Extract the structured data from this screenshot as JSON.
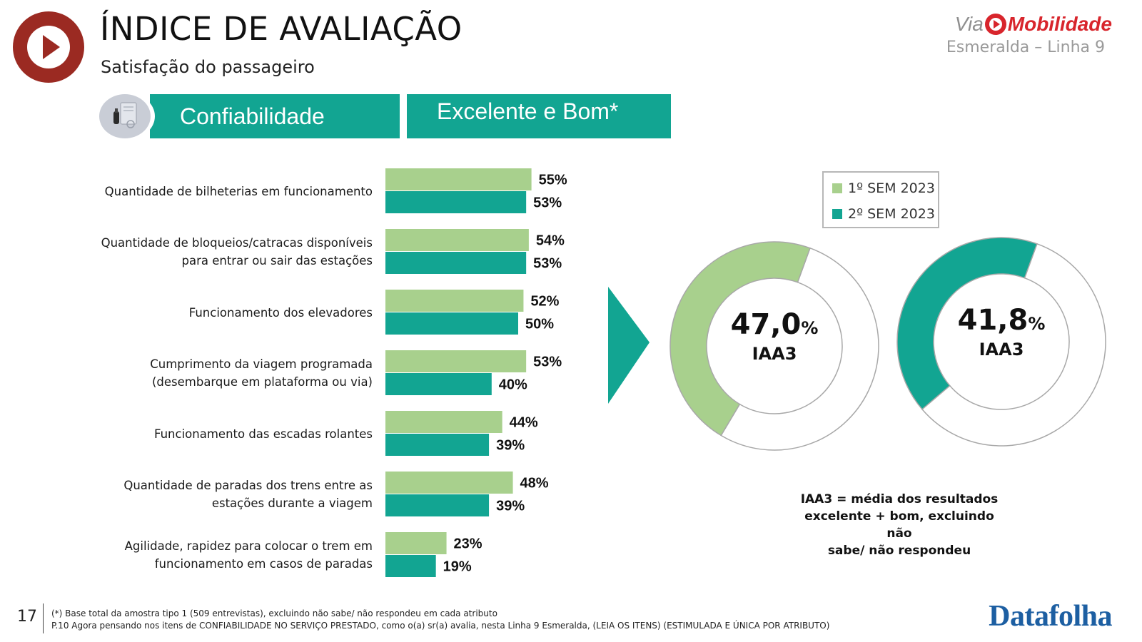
{
  "header": {
    "title": "ÍNDICE DE AVALIAÇÃO",
    "subtitle": "Satisfação do passageiro",
    "brand_via": "Via",
    "brand_mobilidade": "Mobilidade",
    "brand_line": "Esmeralda – Linha 9",
    "logo_icon": "play-icon",
    "brand_color": "#9b2a22"
  },
  "banners": {
    "category": "Confiabilidade",
    "metric": "Excelente e Bom*",
    "category_icon": "ticket-reader-icon",
    "color": "#12a592"
  },
  "chart_data": [
    {
      "type": "bar",
      "orientation": "horizontal",
      "categories": [
        "Quantidade de bilheterias em funcionamento",
        "Quantidade de bloqueios/catracas disponíveis para entrar ou sair das estações",
        "Funcionamento dos elevadores",
        "Cumprimento da viagem programada (desembarque em plataforma ou via)",
        "Funcionamento das escadas rolantes",
        "Quantidade de paradas dos trens entre as estações durante a viagem",
        "Agilidade, rapidez para colocar o trem em funcionamento em casos de paradas"
      ],
      "category_lines": [
        [
          "Quantidade de bilheterias em funcionamento"
        ],
        [
          "Quantidade de bloqueios/catracas disponíveis",
          "para entrar ou sair das estações"
        ],
        [
          "Funcionamento dos elevadores"
        ],
        [
          "Cumprimento da viagem programada",
          "(desembarque em plataforma ou via)"
        ],
        [
          "Funcionamento das escadas rolantes"
        ],
        [
          "Quantidade de paradas dos trens entre as",
          "estações durante a viagem"
        ],
        [
          "Agilidade, rapidez para colocar o trem em",
          "funcionamento em casos de paradas"
        ]
      ],
      "series": [
        {
          "name": "1º SEM 2023",
          "color": "#a8d08d",
          "values": [
            55,
            54,
            52,
            53,
            44,
            48,
            23
          ],
          "labels": [
            "55%",
            "54%",
            "52%",
            "53%",
            "44%",
            "48%",
            "23%"
          ]
        },
        {
          "name": "2º SEM 2023",
          "color": "#12a592",
          "values": [
            53,
            53,
            50,
            40,
            39,
            39,
            19
          ],
          "labels": [
            "53%",
            "53%",
            "50%",
            "40%",
            "39%",
            "39%",
            "19%"
          ]
        }
      ],
      "xlim": [
        0,
        100
      ],
      "grid": false
    },
    {
      "type": "pie",
      "style": "donut",
      "donuts": [
        {
          "series": "1º SEM 2023",
          "value": 47.0,
          "value_text": "47,0",
          "unit": "%",
          "label": "IAA3",
          "color": "#a8d08d"
        },
        {
          "series": "2º SEM 2023",
          "value": 41.8,
          "value_text": "41,8",
          "unit": "%",
          "label": "IAA3",
          "color": "#12a592"
        }
      ],
      "legend": {
        "position": "top-right",
        "items": [
          "1º SEM 2023",
          "2º SEM 2023"
        ]
      }
    }
  ],
  "note": {
    "lines": [
      "IAA3 = média dos resultados",
      "excelente + bom, excluindo não",
      "sabe/ não respondeu"
    ]
  },
  "footer": {
    "page": "17",
    "footnote1": "(*) Base total da amostra tipo 1 (509 entrevistas), excluindo não sabe/ não respondeu em cada atributo",
    "footnote2": "P.10 Agora pensando nos itens de CONFIABILIDADE NO SERVIÇO PRESTADO, como o(a) sr(a) avalia, nesta Linha 9 Esmeralda, (LEIA OS ITENS) (ESTIMULADA E ÚNICA POR ATRIBUTO)",
    "datafolha": "Datafolha"
  }
}
